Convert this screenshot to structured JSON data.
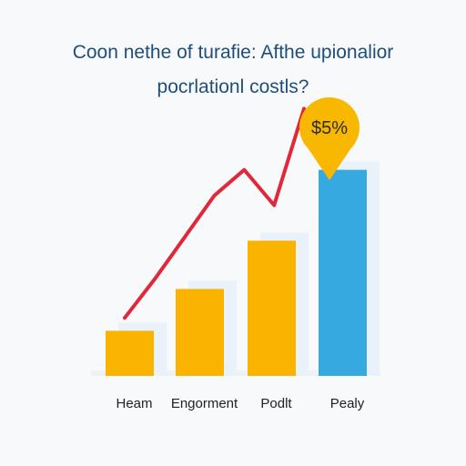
{
  "chart_data": {
    "type": "bar",
    "title_lines": [
      "Coon nethe of turafie: Afthe upionalior",
      "pocrlationl costls?"
    ],
    "categories": [
      "Heam",
      "Engorment",
      "Podlt",
      "Pealy"
    ],
    "values": [
      1.4,
      2.7,
      4.2,
      6.4
    ],
    "ylim": [
      0,
      8
    ],
    "trend_line": [
      1.8,
      3.0,
      4.3,
      5.6,
      6.4,
      5.3,
      8.3
    ],
    "callout": {
      "label": "$5%"
    },
    "grid": false,
    "legend": "none",
    "colors": {
      "bar_primary": "#fab400",
      "bar_highlight": "#36a9e1",
      "bar_shadow": "#e9f1fa",
      "trend_line": "#e0283a",
      "callout": "#f9b800",
      "baseline": "#eef2f7",
      "title": "#1f4e79"
    }
  }
}
